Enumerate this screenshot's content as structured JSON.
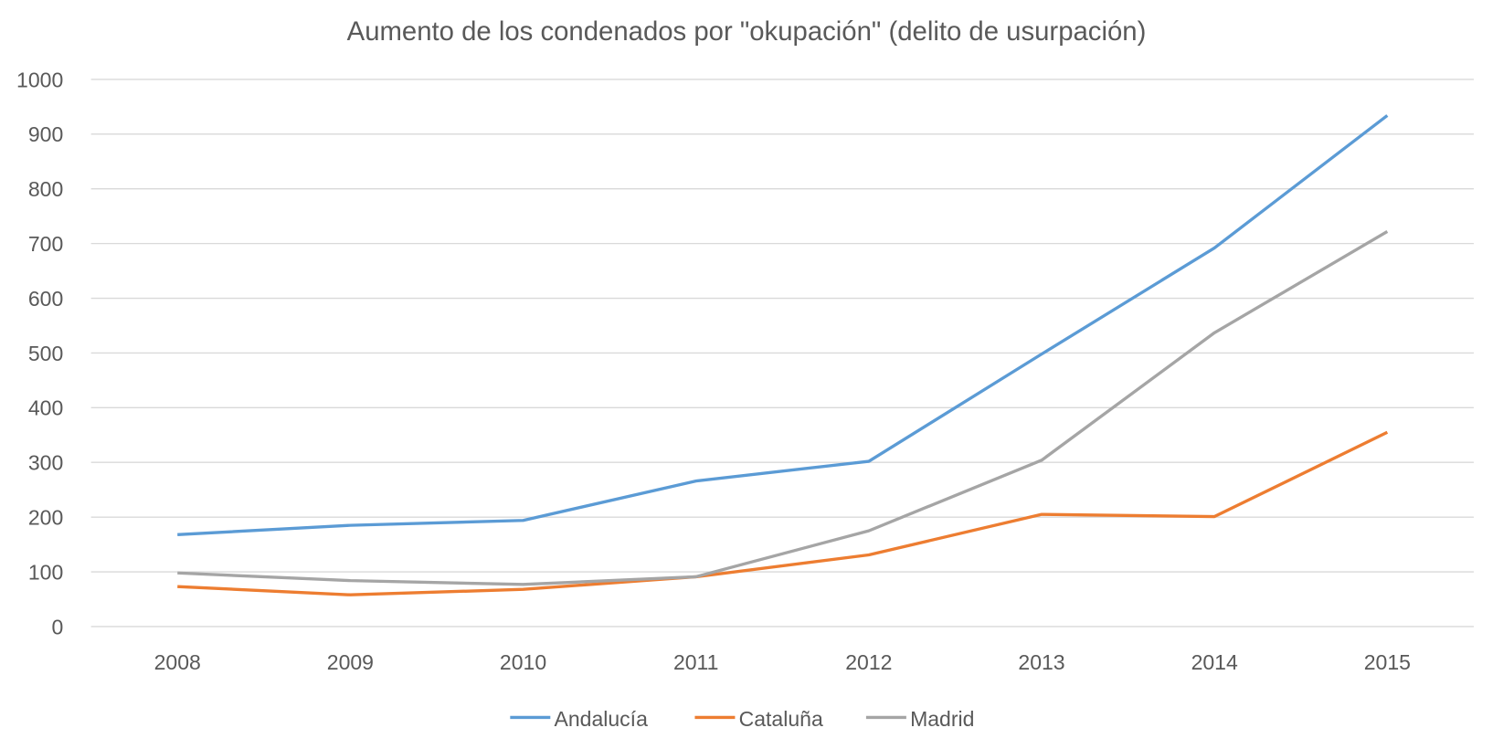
{
  "chart_data": {
    "type": "line",
    "title": "Aumento de los condenados por \"okupación\" (delito de usurpación)",
    "xlabel": "",
    "ylabel": "",
    "categories": [
      "2008",
      "2009",
      "2010",
      "2011",
      "2012",
      "2013",
      "2014",
      "2015"
    ],
    "ylim": [
      0,
      1000
    ],
    "yticks": [
      "0",
      "100",
      "200",
      "300",
      "400",
      "500",
      "600",
      "700",
      "800",
      "900",
      "1000"
    ],
    "grid": true,
    "legend_position": "bottom",
    "series": [
      {
        "name": "Andalucía",
        "color": "#5B9BD5",
        "values": [
          168,
          185,
          194,
          266,
          302,
          498,
          692,
          934
        ]
      },
      {
        "name": "Cataluña",
        "color": "#ED7D31",
        "values": [
          73,
          58,
          68,
          91,
          131,
          205,
          201,
          355
        ]
      },
      {
        "name": "Madrid",
        "color": "#A5A5A5",
        "values": [
          98,
          84,
          77,
          91,
          175,
          304,
          537,
          722
        ]
      }
    ]
  }
}
